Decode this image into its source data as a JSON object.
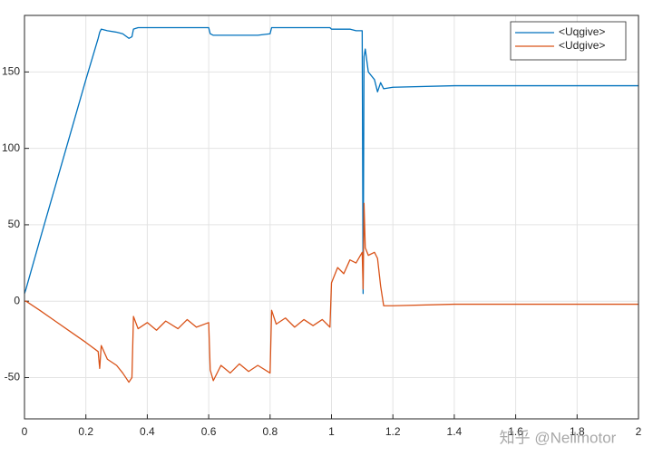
{
  "chart_data": {
    "type": "line",
    "x": [
      0,
      0.005,
      0.05,
      0.1,
      0.15,
      0.2,
      0.24,
      0.245,
      0.25,
      0.27,
      0.3,
      0.32,
      0.34,
      0.35,
      0.355,
      0.37,
      0.4,
      0.43,
      0.46,
      0.5,
      0.53,
      0.56,
      0.6,
      0.605,
      0.615,
      0.64,
      0.67,
      0.7,
      0.73,
      0.76,
      0.8,
      0.805,
      0.82,
      0.85,
      0.88,
      0.91,
      0.94,
      0.97,
      0.995,
      1.0,
      1.02,
      1.04,
      1.06,
      1.08,
      1.1,
      1.103,
      1.106,
      1.11,
      1.12,
      1.14,
      1.15,
      1.16,
      1.17,
      1.2,
      1.4,
      1.6,
      1.8,
      2
    ],
    "series": [
      {
        "name": "<Uqgive>",
        "color": "#0072bd",
        "values": [
          5,
          8,
          40,
          75,
          110,
          145,
          172,
          176,
          178,
          177,
          176,
          175,
          172,
          173,
          178,
          179,
          179,
          179,
          179,
          179,
          179,
          179,
          179,
          175,
          174,
          174,
          174,
          174,
          174,
          174,
          175,
          179,
          179,
          179,
          179,
          179,
          179,
          179,
          179,
          178,
          178,
          178,
          178,
          177,
          177,
          5,
          160,
          165,
          150,
          145,
          137,
          143,
          139,
          140,
          141,
          141,
          141,
          141
        ]
      },
      {
        "name": "<Udgive>",
        "color": "#d95319",
        "values": [
          0,
          0,
          -6,
          -13,
          -20,
          -27,
          -33,
          -44,
          -29,
          -38,
          -42,
          -47,
          -53,
          -50,
          -10,
          -18,
          -14,
          -19,
          -13,
          -18,
          -12,
          -17,
          -14,
          -45,
          -52,
          -42,
          -47,
          -41,
          -46,
          -42,
          -47,
          -6,
          -15,
          -11,
          -17,
          -12,
          -16,
          -12,
          -17,
          12,
          22,
          18,
          27,
          25,
          32,
          8,
          64,
          35,
          30,
          32,
          28,
          10,
          -3,
          -3,
          -2,
          -2,
          -2,
          -2
        ]
      }
    ],
    "xlim": [
      0,
      2
    ],
    "xticks": [
      0,
      0.2,
      0.4,
      0.6,
      0.8,
      1,
      1.2,
      1.4,
      1.6,
      1.8,
      2
    ],
    "ylim": [
      -77,
      187
    ],
    "yticks": [
      -50,
      0,
      50,
      100,
      150
    ],
    "grid": true,
    "legend": "northeast",
    "annotation": "知乎 @Neilmotor"
  }
}
